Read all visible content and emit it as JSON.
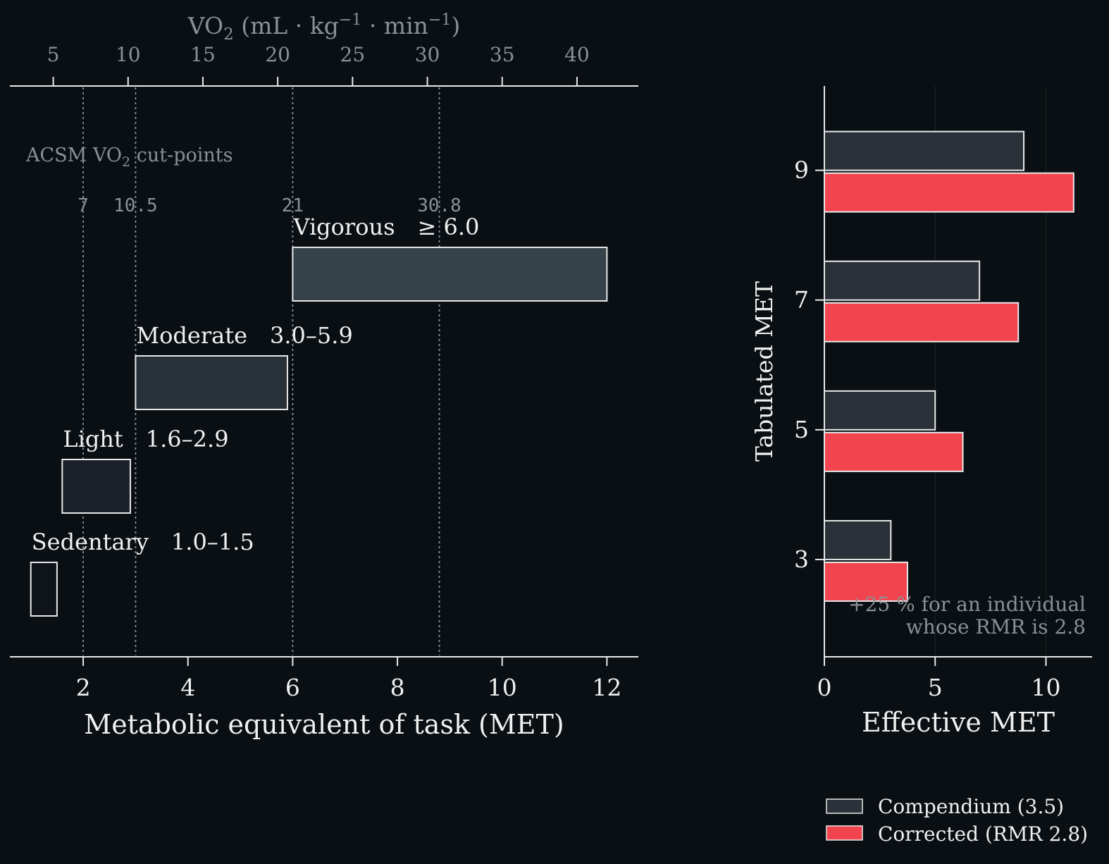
{
  "colors": {
    "background": "#0a0f14",
    "axis": "#e8e8e8",
    "text": "#f0f0f0",
    "muted": "#8a9196",
    "compendium": "#2a3138",
    "corrected": "#f2444f",
    "edge": "#e8e8e8"
  },
  "chart_data": [
    {
      "type": "bar",
      "orientation": "horizontal-range",
      "xlabel": "Metabolic equivalent of task (MET)",
      "xlim": [
        0.6,
        12.6
      ],
      "xticks": [
        "2",
        "4",
        "6",
        "8",
        "10",
        "12"
      ],
      "secondary_x": {
        "label_main": "VO",
        "label_sub": "2",
        "label_units": " (mL · kg",
        "label_sup1": "−1",
        "label_mid": " · min",
        "label_sup2": "−1",
        "label_close": ")",
        "ticks": [
          "5",
          "10",
          "15",
          "20",
          "25",
          "30",
          "35",
          "40"
        ],
        "factor": 3.5
      },
      "cutpoints": {
        "title_main": "ACSM VO",
        "title_sub": "2",
        "title_rest": " cut-points",
        "values_met": [
          2,
          3,
          6,
          8.8
        ],
        "labels": [
          "7",
          "10.5",
          "21",
          "30.8"
        ]
      },
      "bars": [
        {
          "name": "Sedentary",
          "range_label": "1.0–1.5",
          "start": 1.0,
          "end": 1.5,
          "fill": "#0e1419"
        },
        {
          "name": "Light",
          "range_label": "1.6–2.9",
          "start": 1.6,
          "end": 2.9,
          "fill": "#1b2128"
        },
        {
          "name": "Moderate",
          "range_label": "3.0–5.9",
          "start": 3.0,
          "end": 5.9,
          "fill": "#283038"
        },
        {
          "name": "Vigorous",
          "range_label": "≥ 6.0",
          "start": 6.0,
          "end": 12.0,
          "fill": "#37434a"
        }
      ]
    },
    {
      "type": "bar",
      "orientation": "horizontal",
      "xlabel": "Effective MET",
      "ylabel": "Tabulated MET",
      "xlim": [
        0,
        12
      ],
      "ylim": [
        1.5,
        10.3
      ],
      "xticks": [
        "0",
        "5",
        "10"
      ],
      "categories": [
        "3",
        "5",
        "7",
        "9"
      ],
      "series": [
        {
          "name": "Compendium (3.5)",
          "values": [
            3,
            5,
            7,
            9
          ]
        },
        {
          "name": "Corrected (RMR 2.8)",
          "values": [
            3.75,
            6.25,
            8.75,
            11.25
          ]
        }
      ],
      "annotation_line1": "+25 % for an individual",
      "annotation_line2": "whose RMR is 2.8",
      "legend": "bottom-right"
    }
  ]
}
